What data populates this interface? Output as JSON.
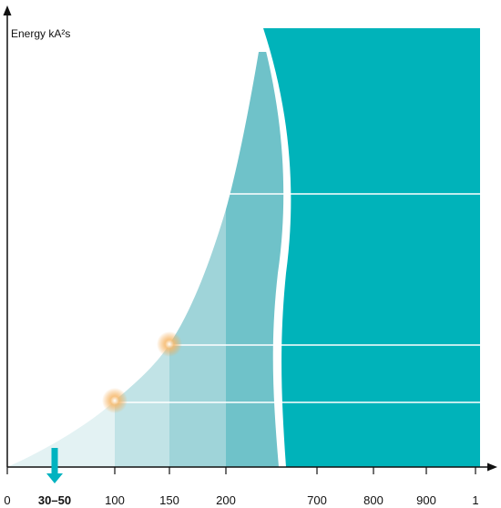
{
  "chart_data": {
    "type": "area",
    "title": "",
    "ylabel": "Energy kA²s",
    "xlabel": "",
    "grid": true,
    "x_ticks": [
      "0",
      "100",
      "150",
      "200",
      "700",
      "800",
      "900",
      "1"
    ],
    "annotation": {
      "label": "30–50",
      "arrow": "down"
    },
    "highlight_points": [
      {
        "x": 100
      },
      {
        "x": 150
      }
    ],
    "bands": [
      {
        "from": 0,
        "to": 100,
        "color": "#e3f2f3"
      },
      {
        "from": 100,
        "to": 150,
        "color": "#c1e3e6"
      },
      {
        "from": 150,
        "to": 200,
        "color": "#9fd4d9"
      },
      {
        "from": 200,
        "to": 230,
        "color": "#6fc2c9"
      }
    ],
    "colors": {
      "main_block": "#00b3ba",
      "annotation_arrow": "#00b3c0",
      "axis": "#111111",
      "gridline": "#ffffff",
      "glow": "#f3a64a"
    }
  }
}
